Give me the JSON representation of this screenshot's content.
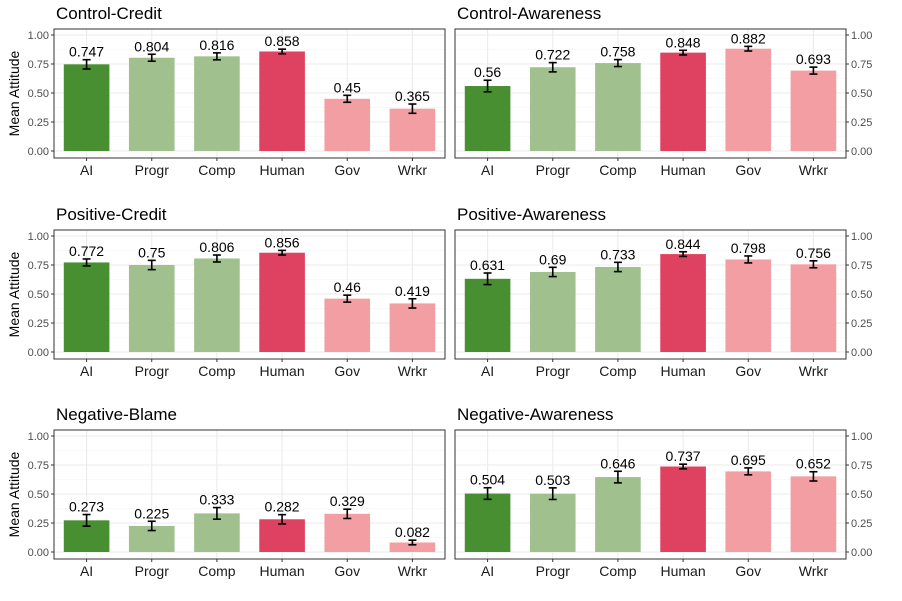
{
  "y_axis_label": "Mean Attitude",
  "colors": {
    "AI": "#478f31",
    "Progr": "#a0c18e",
    "Comp": "#a0c18e",
    "Human": "#df4160",
    "Gov": "#f29ea3",
    "Wrkr": "#f29ea3"
  },
  "chart_data": [
    {
      "type": "bar",
      "title": "Control-Credit",
      "categories": [
        "AI",
        "Progr",
        "Comp",
        "Human",
        "Gov",
        "Wrkr"
      ],
      "values": [
        0.747,
        0.804,
        0.816,
        0.858,
        0.45,
        0.365
      ],
      "labels": [
        "0.747",
        "0.804",
        "0.816",
        "0.858",
        "0.45",
        "0.365"
      ],
      "error": [
        0.04,
        0.03,
        0.03,
        0.02,
        0.03,
        0.04
      ],
      "ylim": [
        0,
        1
      ],
      "yticks": [
        0,
        0.25,
        0.5,
        0.75,
        1
      ],
      "ytick_labels": [
        "0.00",
        "0.25",
        "0.50",
        "0.75",
        "1.00"
      ],
      "y_axis_side": "left",
      "show_ylabel": true
    },
    {
      "type": "bar",
      "title": "Control-Awareness",
      "categories": [
        "AI",
        "Progr",
        "Comp",
        "Human",
        "Gov",
        "Wrkr"
      ],
      "values": [
        0.56,
        0.722,
        0.758,
        0.848,
        0.882,
        0.693
      ],
      "labels": [
        "0.56",
        "0.722",
        "0.758",
        "0.848",
        "0.882",
        "0.693"
      ],
      "error": [
        0.05,
        0.04,
        0.03,
        0.02,
        0.02,
        0.03
      ],
      "ylim": [
        0,
        1
      ],
      "yticks": [
        0,
        0.25,
        0.5,
        0.75,
        1
      ],
      "ytick_labels": [
        "0.00",
        "0.25",
        "0.50",
        "0.75",
        "1.00"
      ],
      "y_axis_side": "right",
      "show_ylabel": false
    },
    {
      "type": "bar",
      "title": "Positive-Credit",
      "categories": [
        "AI",
        "Progr",
        "Comp",
        "Human",
        "Gov",
        "Wrkr"
      ],
      "values": [
        0.772,
        0.75,
        0.806,
        0.856,
        0.46,
        0.419
      ],
      "labels": [
        "0.772",
        "0.75",
        "0.806",
        "0.856",
        "0.46",
        "0.419"
      ],
      "error": [
        0.03,
        0.04,
        0.03,
        0.02,
        0.03,
        0.04
      ],
      "ylim": [
        0,
        1
      ],
      "yticks": [
        0,
        0.25,
        0.5,
        0.75,
        1
      ],
      "ytick_labels": [
        "0.00",
        "0.25",
        "0.50",
        "0.75",
        "1.00"
      ],
      "y_axis_side": "left",
      "show_ylabel": true
    },
    {
      "type": "bar",
      "title": "Positive-Awareness",
      "categories": [
        "AI",
        "Progr",
        "Comp",
        "Human",
        "Gov",
        "Wrkr"
      ],
      "values": [
        0.631,
        0.69,
        0.733,
        0.844,
        0.798,
        0.756
      ],
      "labels": [
        "0.631",
        "0.69",
        "0.733",
        "0.844",
        "0.798",
        "0.756"
      ],
      "error": [
        0.05,
        0.04,
        0.04,
        0.02,
        0.03,
        0.03
      ],
      "ylim": [
        0,
        1
      ],
      "yticks": [
        0,
        0.25,
        0.5,
        0.75,
        1
      ],
      "ytick_labels": [
        "0.00",
        "0.25",
        "0.50",
        "0.75",
        "1.00"
      ],
      "y_axis_side": "right",
      "show_ylabel": false
    },
    {
      "type": "bar",
      "title": "Negative-Blame",
      "categories": [
        "AI",
        "Progr",
        "Comp",
        "Human",
        "Gov",
        "Wrkr"
      ],
      "values": [
        0.273,
        0.225,
        0.333,
        0.282,
        0.329,
        0.082
      ],
      "labels": [
        "0.273",
        "0.225",
        "0.333",
        "0.282",
        "0.329",
        "0.082"
      ],
      "error": [
        0.05,
        0.04,
        0.05,
        0.04,
        0.04,
        0.02
      ],
      "ylim": [
        0,
        1
      ],
      "yticks": [
        0,
        0.25,
        0.5,
        0.75,
        1
      ],
      "ytick_labels": [
        "0.00",
        "0.25",
        "0.50",
        "0.75",
        "1.00"
      ],
      "y_axis_side": "left",
      "show_ylabel": true
    },
    {
      "type": "bar",
      "title": "Negative-Awareness",
      "categories": [
        "AI",
        "Progr",
        "Comp",
        "Human",
        "Gov",
        "Wrkr"
      ],
      "values": [
        0.504,
        0.503,
        0.646,
        0.737,
        0.695,
        0.652
      ],
      "labels": [
        "0.504",
        "0.503",
        "0.646",
        "0.737",
        "0.695",
        "0.652"
      ],
      "error": [
        0.05,
        0.05,
        0.05,
        0.02,
        0.03,
        0.04
      ],
      "ylim": [
        0,
        1
      ],
      "yticks": [
        0,
        0.25,
        0.5,
        0.75,
        1
      ],
      "ytick_labels": [
        "0.00",
        "0.25",
        "0.50",
        "0.75",
        "1.00"
      ],
      "y_axis_side": "right",
      "show_ylabel": false
    }
  ]
}
